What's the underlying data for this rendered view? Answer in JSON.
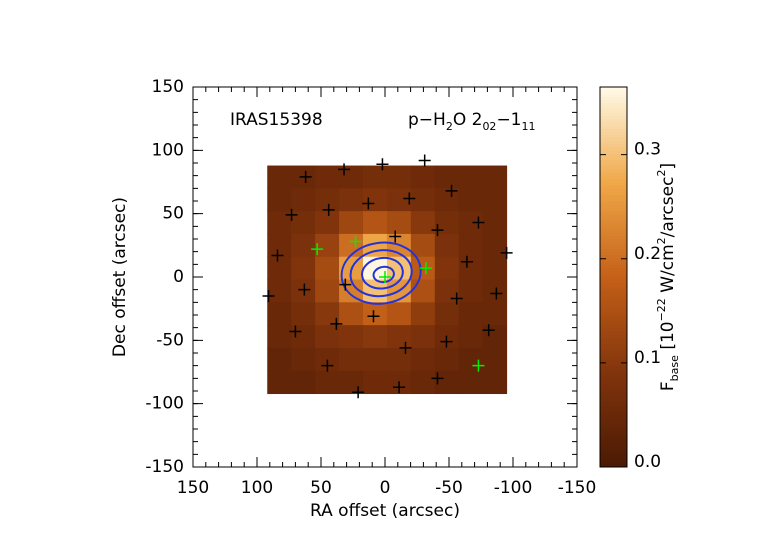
{
  "chart_data": {
    "type": "heatmap",
    "source": "IRAS15398",
    "line_parts": [
      {
        "text": "p−H"
      },
      {
        "text": "2",
        "sub": true
      },
      {
        "text": "O 2"
      },
      {
        "text": "02",
        "sub": true
      },
      {
        "text": "−1"
      },
      {
        "text": "11",
        "sub": true
      }
    ],
    "x_label": "RA offset (arcsec)",
    "y_label": "Dec offset (arcsec)",
    "colorbar_label_parts": [
      {
        "text": "F"
      },
      {
        "text": "base",
        "sub": true
      },
      {
        "text": " [10"
      },
      {
        "text": "−22",
        "sup": true
      },
      {
        "text": " W/cm"
      },
      {
        "text": "2",
        "sup": true
      },
      {
        "text": "/arcsec"
      },
      {
        "text": "2",
        "sup": true
      },
      {
        "text": "]"
      }
    ],
    "xlim": [
      150,
      -150
    ],
    "ylim": [
      -150,
      150
    ],
    "xticks": [
      150,
      100,
      50,
      0,
      -50,
      -100,
      -150
    ],
    "yticks": [
      -150,
      -100,
      -50,
      0,
      50,
      100,
      150
    ],
    "clim": [
      0,
      0.365
    ],
    "cticks": [
      {
        "value": 0,
        "label": "0.0"
      },
      0.1,
      0.2,
      0.3
    ],
    "map_x_extent": [
      92,
      -95
    ],
    "map_y_extent": [
      88,
      -92
    ],
    "values": [
      [
        0.05,
        0.05,
        0.06,
        0.06,
        0.07,
        0.07,
        0.06,
        0.05,
        0.05,
        0.05
      ],
      [
        0.05,
        0.06,
        0.07,
        0.08,
        0.09,
        0.08,
        0.07,
        0.06,
        0.05,
        0.05
      ],
      [
        0.06,
        0.07,
        0.09,
        0.13,
        0.16,
        0.14,
        0.1,
        0.07,
        0.06,
        0.05
      ],
      [
        0.06,
        0.08,
        0.12,
        0.2,
        0.27,
        0.23,
        0.14,
        0.08,
        0.06,
        0.05
      ],
      [
        0.06,
        0.09,
        0.14,
        0.26,
        0.36,
        0.3,
        0.17,
        0.09,
        0.06,
        0.05
      ],
      [
        0.06,
        0.08,
        0.13,
        0.22,
        0.3,
        0.25,
        0.15,
        0.08,
        0.06,
        0.05
      ],
      [
        0.05,
        0.07,
        0.1,
        0.15,
        0.18,
        0.16,
        0.11,
        0.07,
        0.05,
        0.05
      ],
      [
        0.05,
        0.06,
        0.08,
        0.09,
        0.1,
        0.09,
        0.08,
        0.06,
        0.05,
        0.04
      ],
      [
        0.04,
        0.05,
        0.06,
        0.07,
        0.07,
        0.07,
        0.06,
        0.05,
        0.04,
        0.04
      ],
      [
        0.04,
        0.04,
        0.05,
        0.05,
        0.06,
        0.06,
        0.05,
        0.04,
        0.04,
        0.04
      ]
    ],
    "spaxels": {
      "color": "#000000",
      "x": [
        62,
        32,
        2,
        -31,
        73,
        44,
        13,
        -19,
        -52,
        -73,
        84,
        -8,
        -41,
        -64,
        -95,
        91,
        63,
        31,
        -56,
        -87,
        70,
        38,
        9,
        -81,
        -16,
        -48,
        45,
        -41,
        -11,
        21
      ],
      "y": [
        79,
        85,
        89,
        92,
        49,
        53,
        58,
        62,
        68,
        43,
        17,
        32,
        37,
        12,
        19,
        -15,
        -10,
        -6,
        -17,
        -13,
        -43,
        -37,
        -31,
        -42,
        -56,
        -51,
        -70,
        -80,
        -87,
        -91
      ]
    },
    "detected_spaxels": {
      "color": "#00ee00",
      "x": [
        53,
        23,
        0,
        -32,
        -73
      ],
      "y": [
        22,
        28,
        0,
        7,
        -70
      ]
    },
    "contours": {
      "color": "#2233dd",
      "x": [
        3,
        3,
        2,
        1
      ],
      "y": [
        3,
        3,
        3,
        2
      ],
      "rx": [
        31,
        24,
        16,
        8
      ],
      "ry": [
        24,
        18,
        12,
        6
      ]
    }
  }
}
